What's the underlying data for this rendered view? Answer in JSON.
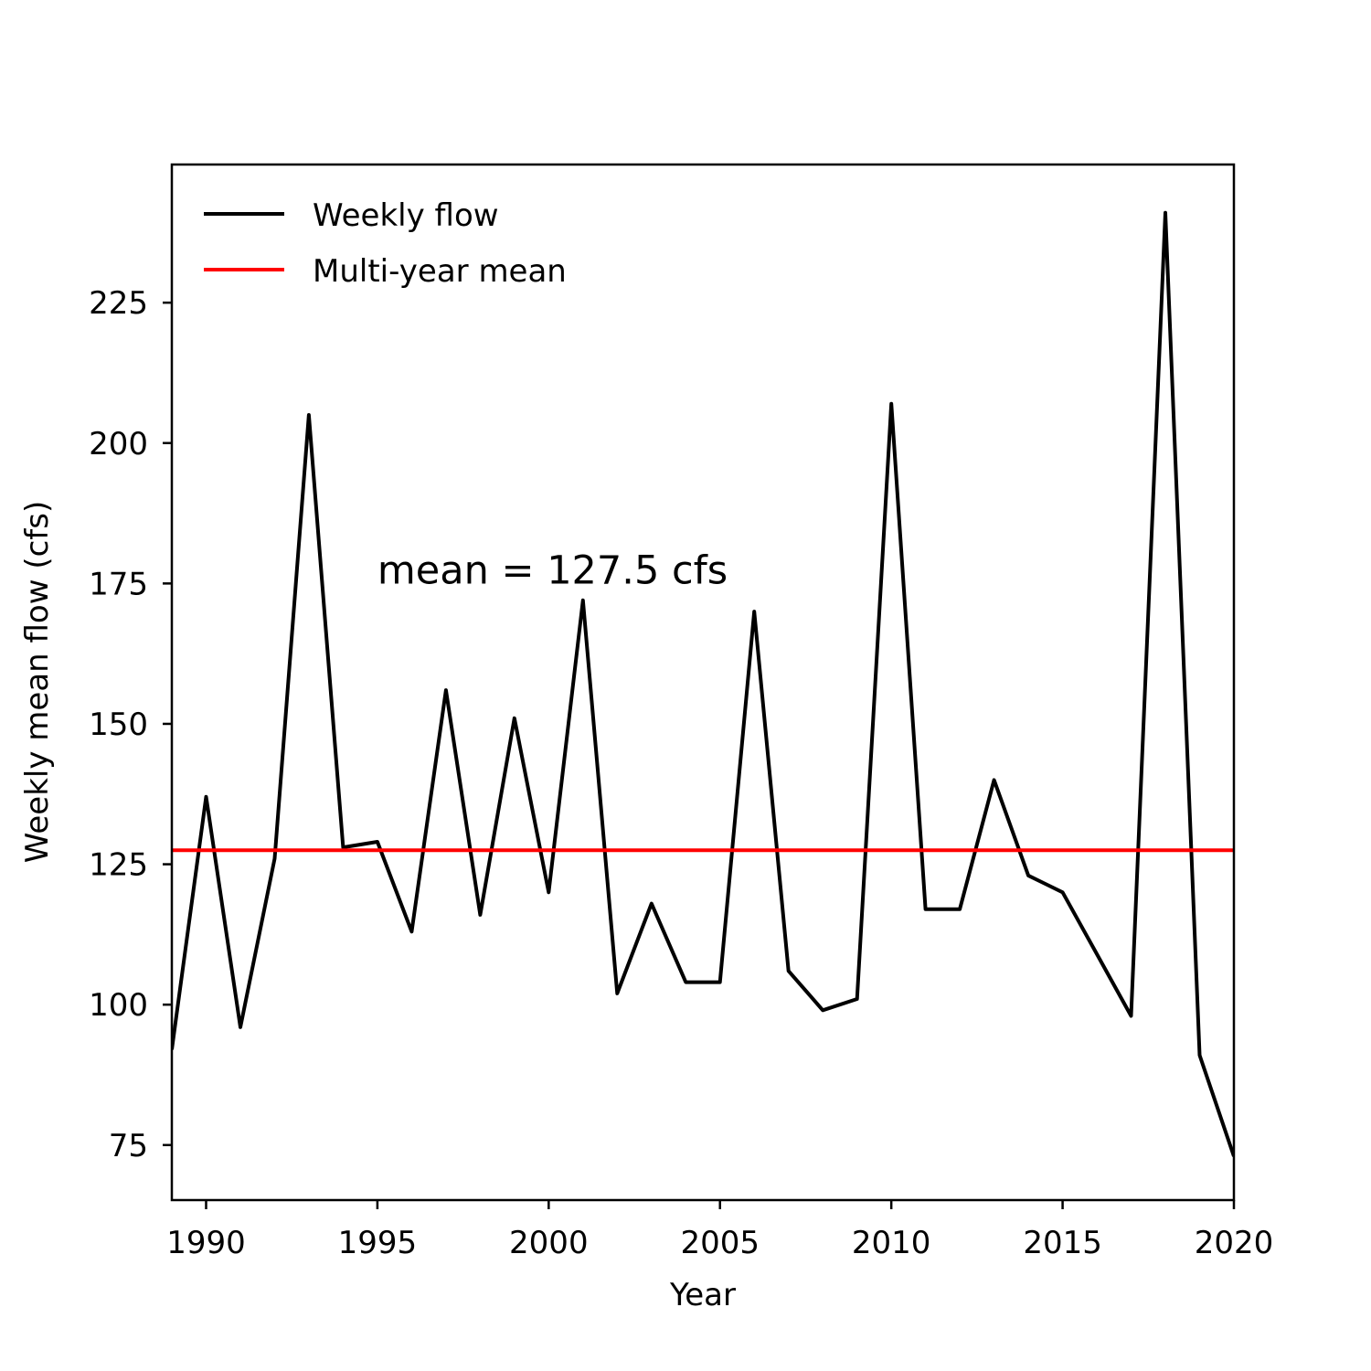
{
  "chart_data": {
    "type": "line",
    "xlabel": "Year",
    "ylabel": "Weekly mean flow (cfs)",
    "xlim": [
      1989,
      2020
    ],
    "ylim": [
      65.2,
      249.6
    ],
    "x_ticks": [
      1990,
      1995,
      2000,
      2005,
      2010,
      2015,
      2020
    ],
    "y_ticks": [
      75,
      100,
      125,
      150,
      175,
      200,
      225
    ],
    "grid": false,
    "legend_position": "top-left",
    "annotation": "mean = 127.5 cfs",
    "annotation_at": {
      "x": 1995,
      "y": 175
    },
    "series": [
      {
        "name": "Weekly flow",
        "color": "#000000",
        "x": [
          1989,
          1990,
          1991,
          1992,
          1993,
          1994,
          1995,
          1996,
          1997,
          1998,
          1999,
          2000,
          2001,
          2002,
          2003,
          2004,
          2005,
          2006,
          2007,
          2008,
          2009,
          2010,
          2011,
          2012,
          2013,
          2014,
          2015,
          2016,
          2017,
          2018,
          2019,
          2020
        ],
        "y": [
          92,
          137,
          96,
          126,
          205,
          128,
          129,
          113,
          156,
          116,
          151,
          120,
          172,
          102,
          118,
          104,
          104,
          170,
          106,
          99,
          101,
          207,
          117,
          117,
          140,
          123,
          120,
          109,
          98,
          241,
          91,
          73
        ]
      },
      {
        "name": "Multi-year mean",
        "color": "#ff0000",
        "x": [
          1989,
          2020
        ],
        "y": [
          127.5,
          127.5
        ]
      }
    ]
  }
}
